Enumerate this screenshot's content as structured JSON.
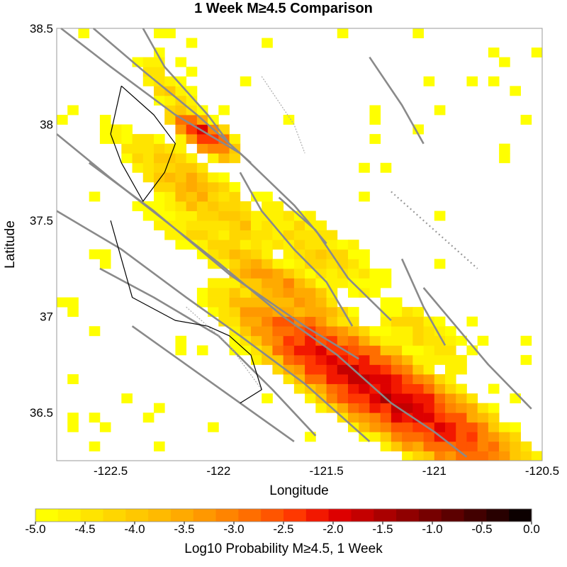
{
  "chart_data": {
    "type": "heatmap",
    "title": "1 Week M≥4.5 Comparison",
    "xlabel": "Longitude",
    "ylabel": "Latitude",
    "xlim": [
      -122.75,
      -120.5
    ],
    "ylim": [
      36.25,
      38.5
    ],
    "x_ticks": [
      "-122.5",
      "-122",
      "-121.5",
      "-121",
      "-120.5"
    ],
    "y_ticks": [
      "38.5",
      "38",
      "37.5",
      "37",
      "36.5"
    ],
    "cell_size_deg": 0.05,
    "colorbar": {
      "label": "Log10 Probability M≥4.5, 1 Week",
      "range": [
        -5.0,
        0.0
      ],
      "ticks": [
        "-5.0",
        "-4.5",
        "-4.0",
        "-3.5",
        "-3.0",
        "-2.5",
        "-2.0",
        "-1.5",
        "-1.0",
        "-0.5",
        "0.0"
      ],
      "colors": [
        "#ffff00",
        "#fff200",
        "#ffe400",
        "#ffd600",
        "#ffc800",
        "#ffba00",
        "#ffaa00",
        "#ff9800",
        "#ff8400",
        "#ff6e00",
        "#ff5500",
        "#ff3800",
        "#f21800",
        "#dd0000",
        "#c40000",
        "#aa0000",
        "#900000",
        "#760000",
        "#5c0000",
        "#420000",
        "#280000",
        "#0c0000"
      ]
    },
    "hotspots": [
      {
        "lon": -122.07,
        "lat": 37.95,
        "peak": -2.0,
        "sigma_along": 0.12,
        "sigma_across": 0.05,
        "angle_deg": -45
      },
      {
        "lon": -121.25,
        "lat": 36.62,
        "peak": -1.8,
        "sigma_along": 0.5,
        "sigma_across": 0.13,
        "angle_deg": -42
      },
      {
        "lon": -121.7,
        "lat": 37.15,
        "peak": -3.3,
        "sigma_along": 0.32,
        "sigma_across": 0.09,
        "angle_deg": -42
      },
      {
        "lon": -122.1,
        "lat": 37.65,
        "peak": -3.8,
        "sigma_along": 0.45,
        "sigma_across": 0.12,
        "angle_deg": -48
      },
      {
        "lon": -121.95,
        "lat": 37.35,
        "peak": -4.1,
        "sigma_along": 0.4,
        "sigma_across": 0.1,
        "angle_deg": -35
      },
      {
        "lon": -121.55,
        "lat": 37.35,
        "peak": -4.2,
        "sigma_along": 0.4,
        "sigma_across": 0.14,
        "angle_deg": -45
      },
      {
        "lon": -121.05,
        "lat": 36.9,
        "peak": -4.3,
        "sigma_along": 0.3,
        "sigma_across": 0.12,
        "angle_deg": -45
      },
      {
        "lon": -121.0,
        "lat": 36.45,
        "peak": -3.2,
        "sigma_along": 0.2,
        "sigma_across": 0.06,
        "angle_deg": -50
      },
      {
        "lon": -122.2,
        "lat": 38.15,
        "peak": -4.3,
        "sigma_along": 0.3,
        "sigma_across": 0.08,
        "angle_deg": -60
      }
    ],
    "grid": false
  }
}
